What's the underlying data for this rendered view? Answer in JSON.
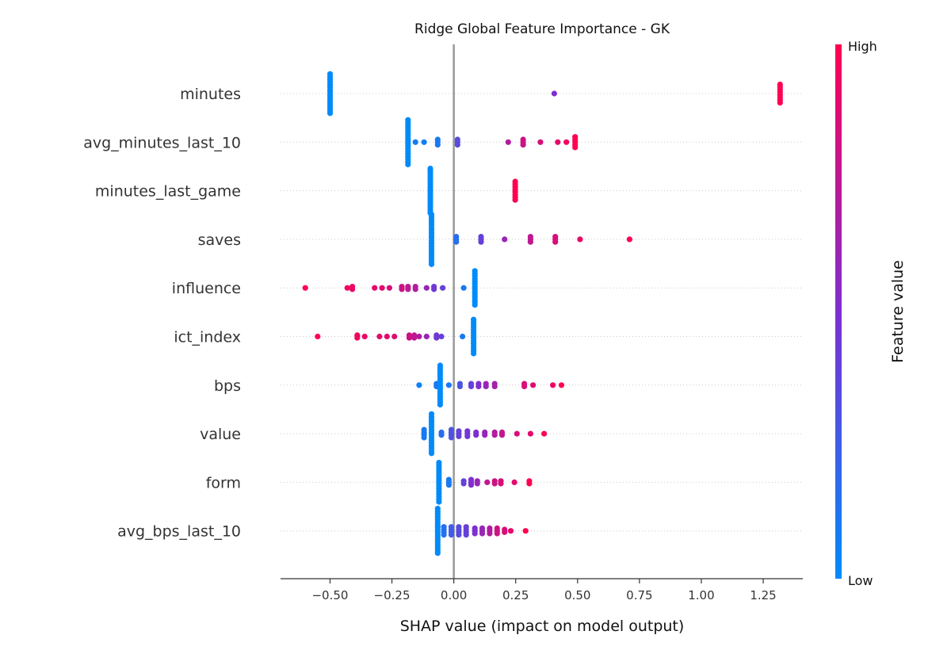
{
  "chart_data": {
    "type": "scatter",
    "title": "Ridge Global Feature Importance - GK",
    "xlabel": "SHAP value (impact on model output)",
    "xlim": [
      -0.7,
      1.41
    ],
    "xticks": [
      -0.5,
      -0.25,
      0.0,
      0.25,
      0.5,
      0.75,
      1.0,
      1.25
    ],
    "xtick_labels": [
      "−0.50",
      "−0.25",
      "0.00",
      "0.25",
      "0.50",
      "0.75",
      "1.00",
      "1.25"
    ],
    "colorbar": {
      "label": "Feature value",
      "high": "High",
      "low": "Low",
      "low_color": "#008bfb",
      "mid_color": "#7e2fd0",
      "high_color": "#ff0052"
    },
    "axis_line_color": "#999999",
    "features": [
      {
        "name": "minutes",
        "points": [
          {
            "x": -0.5,
            "v": 0.0,
            "n": 16
          },
          {
            "x": 0.406,
            "v": 0.5,
            "n": 1
          },
          {
            "x": 1.318,
            "v": 1.0,
            "n": 8
          }
        ]
      },
      {
        "name": "avg_minutes_last_10",
        "points": [
          {
            "x": -0.185,
            "v": 0.0,
            "n": 18
          },
          {
            "x": -0.155,
            "v": 0.08,
            "n": 1
          },
          {
            "x": -0.12,
            "v": 0.06,
            "n": 1
          },
          {
            "x": -0.065,
            "v": 0.1,
            "n": 3
          },
          {
            "x": 0.015,
            "v": 0.35,
            "n": 3
          },
          {
            "x": 0.22,
            "v": 0.7,
            "n": 1
          },
          {
            "x": 0.28,
            "v": 0.8,
            "n": 3
          },
          {
            "x": 0.35,
            "v": 0.85,
            "n": 1
          },
          {
            "x": 0.42,
            "v": 0.9,
            "n": 1
          },
          {
            "x": 0.455,
            "v": 0.95,
            "n": 1
          },
          {
            "x": 0.49,
            "v": 1.0,
            "n": 5
          }
        ]
      },
      {
        "name": "minutes_last_game",
        "points": [
          {
            "x": -0.095,
            "v": 0.0,
            "n": 18
          },
          {
            "x": 0.248,
            "v": 1.0,
            "n": 8
          }
        ]
      },
      {
        "name": "saves",
        "points": [
          {
            "x": -0.09,
            "v": 0.0,
            "n": 20
          },
          {
            "x": 0.01,
            "v": 0.15,
            "n": 3
          },
          {
            "x": 0.11,
            "v": 0.4,
            "n": 3
          },
          {
            "x": 0.205,
            "v": 0.6,
            "n": 1
          },
          {
            "x": 0.31,
            "v": 0.75,
            "n": 3
          },
          {
            "x": 0.41,
            "v": 0.85,
            "n": 3
          },
          {
            "x": 0.51,
            "v": 0.92,
            "n": 1
          },
          {
            "x": 0.71,
            "v": 1.0,
            "n": 1
          }
        ]
      },
      {
        "name": "influence",
        "points": [
          {
            "x": -0.6,
            "v": 1.0,
            "n": 1
          },
          {
            "x": -0.43,
            "v": 0.95,
            "n": 1
          },
          {
            "x": -0.41,
            "v": 0.92,
            "n": 2
          },
          {
            "x": -0.32,
            "v": 0.9,
            "n": 1
          },
          {
            "x": -0.29,
            "v": 0.88,
            "n": 1
          },
          {
            "x": -0.26,
            "v": 0.85,
            "n": 1
          },
          {
            "x": -0.21,
            "v": 0.8,
            "n": 2
          },
          {
            "x": -0.185,
            "v": 0.75,
            "n": 2
          },
          {
            "x": -0.155,
            "v": 0.7,
            "n": 2
          },
          {
            "x": -0.11,
            "v": 0.6,
            "n": 1
          },
          {
            "x": -0.08,
            "v": 0.45,
            "n": 2
          },
          {
            "x": -0.045,
            "v": 0.4,
            "n": 1
          },
          {
            "x": 0.04,
            "v": 0.1,
            "n": 1
          },
          {
            "x": 0.085,
            "v": 0.0,
            "n": 14
          }
        ]
      },
      {
        "name": "ict_index",
        "points": [
          {
            "x": -0.55,
            "v": 1.0,
            "n": 1
          },
          {
            "x": -0.39,
            "v": 0.95,
            "n": 2
          },
          {
            "x": -0.36,
            "v": 0.93,
            "n": 1
          },
          {
            "x": -0.3,
            "v": 0.9,
            "n": 1
          },
          {
            "x": -0.27,
            "v": 0.88,
            "n": 1
          },
          {
            "x": -0.24,
            "v": 0.86,
            "n": 1
          },
          {
            "x": -0.18,
            "v": 0.8,
            "n": 2
          },
          {
            "x": -0.16,
            "v": 0.75,
            "n": 2
          },
          {
            "x": -0.14,
            "v": 0.7,
            "n": 1
          },
          {
            "x": -0.11,
            "v": 0.6,
            "n": 1
          },
          {
            "x": -0.07,
            "v": 0.45,
            "n": 2
          },
          {
            "x": -0.05,
            "v": 0.4,
            "n": 1
          },
          {
            "x": 0.035,
            "v": 0.1,
            "n": 1
          },
          {
            "x": 0.08,
            "v": 0.0,
            "n": 14
          }
        ]
      },
      {
        "name": "bps",
        "points": [
          {
            "x": -0.14,
            "v": 0.05,
            "n": 1
          },
          {
            "x": -0.07,
            "v": 0.1,
            "n": 2
          },
          {
            "x": -0.055,
            "v": 0.0,
            "n": 16
          },
          {
            "x": -0.02,
            "v": 0.1,
            "n": 1
          },
          {
            "x": 0.025,
            "v": 0.3,
            "n": 2
          },
          {
            "x": 0.07,
            "v": 0.4,
            "n": 2
          },
          {
            "x": 0.1,
            "v": 0.5,
            "n": 2
          },
          {
            "x": 0.13,
            "v": 0.6,
            "n": 2
          },
          {
            "x": 0.165,
            "v": 0.65,
            "n": 2
          },
          {
            "x": 0.285,
            "v": 0.85,
            "n": 2
          },
          {
            "x": 0.32,
            "v": 0.88,
            "n": 1
          },
          {
            "x": 0.4,
            "v": 0.95,
            "n": 1
          },
          {
            "x": 0.435,
            "v": 1.0,
            "n": 1
          }
        ]
      },
      {
        "name": "value",
        "points": [
          {
            "x": -0.12,
            "v": 0.1,
            "n": 4
          },
          {
            "x": -0.09,
            "v": 0.0,
            "n": 16
          },
          {
            "x": -0.05,
            "v": 0.15,
            "n": 2
          },
          {
            "x": -0.01,
            "v": 0.3,
            "n": 4
          },
          {
            "x": 0.02,
            "v": 0.4,
            "n": 3
          },
          {
            "x": 0.055,
            "v": 0.45,
            "n": 3
          },
          {
            "x": 0.09,
            "v": 0.5,
            "n": 2
          },
          {
            "x": 0.125,
            "v": 0.6,
            "n": 2
          },
          {
            "x": 0.165,
            "v": 0.7,
            "n": 2
          },
          {
            "x": 0.195,
            "v": 0.75,
            "n": 2
          },
          {
            "x": 0.255,
            "v": 0.85,
            "n": 1
          },
          {
            "x": 0.31,
            "v": 0.9,
            "n": 1
          },
          {
            "x": 0.365,
            "v": 1.0,
            "n": 1
          }
        ]
      },
      {
        "name": "form",
        "points": [
          {
            "x": -0.06,
            "v": 0.0,
            "n": 16
          },
          {
            "x": -0.02,
            "v": 0.1,
            "n": 3
          },
          {
            "x": 0.04,
            "v": 0.4,
            "n": 2
          },
          {
            "x": 0.07,
            "v": 0.5,
            "n": 3
          },
          {
            "x": 0.095,
            "v": 0.6,
            "n": 2
          },
          {
            "x": 0.135,
            "v": 0.75,
            "n": 1
          },
          {
            "x": 0.165,
            "v": 0.8,
            "n": 2
          },
          {
            "x": 0.19,
            "v": 0.85,
            "n": 2
          },
          {
            "x": 0.245,
            "v": 0.9,
            "n": 1
          },
          {
            "x": 0.305,
            "v": 1.0,
            "n": 2
          }
        ]
      },
      {
        "name": "avg_bps_last_10",
        "points": [
          {
            "x": -0.065,
            "v": 0.0,
            "n": 18
          },
          {
            "x": -0.04,
            "v": 0.15,
            "n": 4
          },
          {
            "x": -0.01,
            "v": 0.25,
            "n": 4
          },
          {
            "x": 0.02,
            "v": 0.35,
            "n": 4
          },
          {
            "x": 0.05,
            "v": 0.4,
            "n": 4
          },
          {
            "x": 0.085,
            "v": 0.5,
            "n": 3
          },
          {
            "x": 0.115,
            "v": 0.6,
            "n": 3
          },
          {
            "x": 0.145,
            "v": 0.7,
            "n": 3
          },
          {
            "x": 0.175,
            "v": 0.8,
            "n": 3
          },
          {
            "x": 0.205,
            "v": 0.85,
            "n": 2
          },
          {
            "x": 0.23,
            "v": 0.9,
            "n": 1
          },
          {
            "x": 0.29,
            "v": 1.0,
            "n": 1
          }
        ]
      }
    ]
  }
}
